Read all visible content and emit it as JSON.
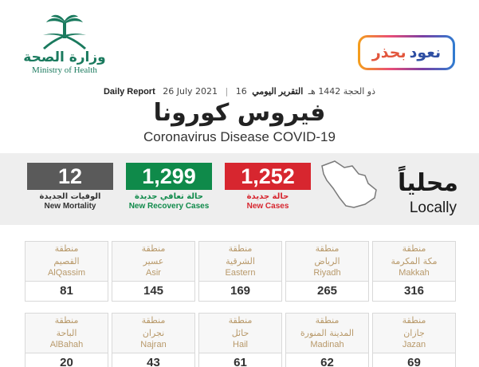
{
  "header": {
    "ministry_ar": "وزارة الصحة",
    "ministry_en": "Ministry of Health",
    "badge_word1": "نعود",
    "badge_word2": "بحذر",
    "report_ar": "التقرير اليومي",
    "report_hijri": "16 ذو الحجة 1442 هـ",
    "report_date": "26 July 2021",
    "report_en": "Daily Report",
    "title_ar": "فيروس كورونا",
    "title_en": "Coronavirus Disease COVID-19"
  },
  "summary": {
    "locally_ar": "محلياً",
    "locally_en": "Locally",
    "new_cases": {
      "value": "1,252",
      "label_ar": "حالة جديدة",
      "label_en": "New Cases",
      "color": "#d7262f"
    },
    "new_recovery": {
      "value": "1,299",
      "label_ar": "حالة تعافي جديدة",
      "label_en": "New Recovery Cases",
      "color": "#0f8a4a"
    },
    "new_mortality": {
      "value": "12",
      "label_ar": "الوفيات الجديدة",
      "label_en": "New Mortality",
      "color": "#5a5a5a"
    }
  },
  "region_word_ar": "منطقة",
  "regions": [
    {
      "name_ar": "مكة المكرمة",
      "name_en": "Makkah",
      "value": "316"
    },
    {
      "name_ar": "الرياض",
      "name_en": "Riyadh",
      "value": "265"
    },
    {
      "name_ar": "الشرقية",
      "name_en": "Eastern",
      "value": "169"
    },
    {
      "name_ar": "عسير",
      "name_en": "Asir",
      "value": "145"
    },
    {
      "name_ar": "القصيم",
      "name_en": "AlQassim",
      "value": "81"
    },
    {
      "name_ar": "جازان",
      "name_en": "Jazan",
      "value": "69"
    },
    {
      "name_ar": "المدينة المنورة",
      "name_en": "Madinah",
      "value": "62"
    },
    {
      "name_ar": "حائل",
      "name_en": "Hail",
      "value": "61"
    },
    {
      "name_ar": "نجران",
      "name_en": "Najran",
      "value": "43"
    },
    {
      "name_ar": "الباحة",
      "name_en": "AlBahah",
      "value": "20"
    }
  ],
  "colors": {
    "brand_green": "#1a7a5e",
    "region_label": "#b8996a"
  }
}
